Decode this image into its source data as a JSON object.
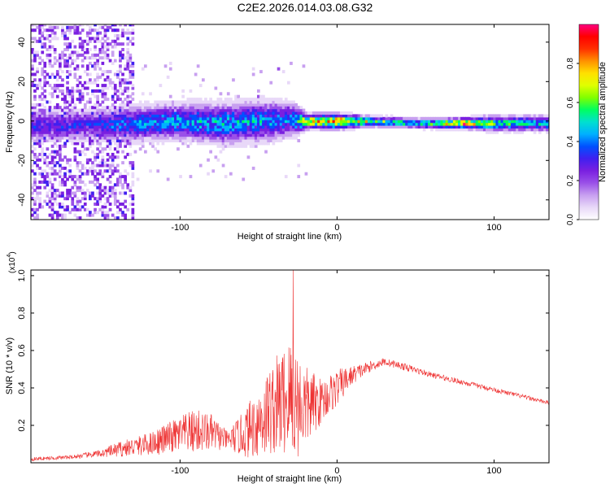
{
  "figure": {
    "title": "C2E2.2026.014.03.08.G32"
  },
  "chart_data": [
    {
      "type": "heatmap",
      "xlabel": "Height of straight line (km)",
      "ylabel": "Frequency (Hz)",
      "xlim": [
        -195,
        135
      ],
      "ylim": [
        -50,
        49
      ],
      "x_ticks": [
        -100,
        0,
        100
      ],
      "x_tick_labels": [
        "-100",
        "0",
        "100"
      ],
      "y_ticks": [
        -40,
        -20,
        0,
        20,
        40
      ],
      "y_tick_labels": [
        "-40",
        "-20",
        "0",
        "20",
        "40"
      ],
      "colorbar": {
        "label": "Normalized spectral amplitude",
        "range": [
          0,
          1
        ],
        "ticks": [
          0.0,
          0.2,
          0.4,
          0.6,
          0.8
        ],
        "tick_labels": [
          "0.0",
          "0.2",
          "0.4",
          "0.6",
          "0.8"
        ],
        "colormap": [
          "#ffffff",
          "#e8d8f8",
          "#c8a0f0",
          "#9a50e8",
          "#7a20e0",
          "#4020f0",
          "#0050ff",
          "#00b0ff",
          "#00e0d0",
          "#00ff60",
          "#80ff00",
          "#e0ff00",
          "#ffe000",
          "#ff9000",
          "#ff3000",
          "#ff0000",
          "#ff0080"
        ]
      },
      "ridge": {
        "description_x": [
          -160,
          -130,
          -100,
          -75,
          -50,
          -30,
          -20,
          0,
          20,
          50,
          80,
          100,
          135
        ],
        "center_hz": [
          -3,
          -2,
          -1,
          -2,
          -1,
          0,
          -1,
          -1,
          -1,
          -2,
          -2,
          -2,
          -2
        ],
        "halfwidth_hz": [
          6,
          7,
          7,
          8,
          8,
          7,
          3,
          3,
          2,
          2,
          2,
          3,
          3
        ],
        "peak_amplitude": [
          0.35,
          0.45,
          0.5,
          0.5,
          0.5,
          0.45,
          0.8,
          0.95,
          0.7,
          0.5,
          0.95,
          0.6,
          0.5
        ]
      }
    },
    {
      "type": "line",
      "xlabel": "Height of straight line (km)",
      "ylabel": "SNR (10 * v/v)",
      "y_scale_label": "(x10",
      "y_scale_exponent": "4",
      "y_scale_suffix": ")",
      "xlim": [
        -195,
        135
      ],
      "ylim": [
        0,
        1.03
      ],
      "x_ticks": [
        -100,
        0,
        100
      ],
      "x_tick_labels": [
        "-100",
        "0",
        "100"
      ],
      "y_ticks": [
        0.2,
        0.4,
        0.6,
        0.8,
        1.0
      ],
      "y_tick_labels": [
        "0.2",
        "0.4",
        "0.6",
        "0.8",
        "1.0"
      ],
      "series": [
        {
          "name": "SNR",
          "color": "#ee3333",
          "envelope_x": [
            -195,
            -170,
            -150,
            -140,
            -120,
            -100,
            -90,
            -80,
            -70,
            -60,
            -50,
            -40,
            -30,
            -25,
            -20,
            -10,
            0,
            10,
            20,
            30,
            40,
            60,
            80,
            100,
            120,
            135
          ],
          "envelope_mean": [
            0.02,
            0.03,
            0.05,
            0.07,
            0.1,
            0.15,
            0.17,
            0.16,
            0.12,
            0.15,
            0.22,
            0.3,
            0.35,
            0.32,
            0.3,
            0.33,
            0.4,
            0.47,
            0.51,
            0.54,
            0.52,
            0.47,
            0.43,
            0.39,
            0.35,
            0.32
          ],
          "envelope_spread": [
            0.01,
            0.01,
            0.02,
            0.04,
            0.06,
            0.1,
            0.12,
            0.1,
            0.05,
            0.12,
            0.2,
            0.26,
            0.33,
            0.3,
            0.22,
            0.12,
            0.1,
            0.05,
            0.03,
            0.02,
            0.02,
            0.015,
            0.015,
            0.012,
            0.012,
            0.01
          ],
          "peak": {
            "x": -28,
            "y": 1.03
          }
        }
      ]
    }
  ]
}
